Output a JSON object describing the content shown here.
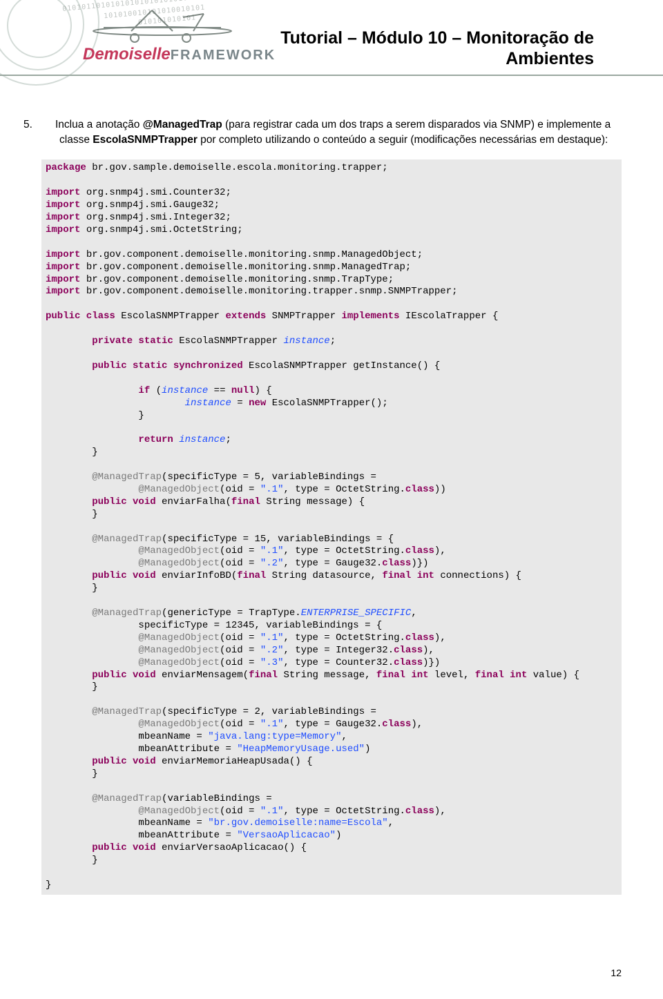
{
  "header": {
    "logo_brand": "Demoiselle",
    "logo_suffix": "FRAMEWORK",
    "title_line1": "Tutorial – Módulo 10 – Monitoração de",
    "title_line2": "Ambientes"
  },
  "body": {
    "item_number": "5.",
    "text_before_ann": "Inclua a anotação ",
    "annotation": "@ManagedTrap",
    "text_mid1": " (para registrar cada um dos traps a serem disparados via SNMP) e implemente a classe ",
    "classname": "EscolaSNMPTrapper",
    "text_after": " por completo utilizando o conteúdo a seguir (modificações necessárias em destaque):"
  },
  "code": {
    "lines": [
      [
        [
          "kw",
          "package"
        ],
        [
          "",
          " br.gov.sample.demoiselle.escola.monitoring.trapper;"
        ]
      ],
      [
        [
          "",
          ""
        ]
      ],
      [
        [
          "kw",
          "import"
        ],
        [
          "",
          " org.snmp4j.smi.Counter32;"
        ]
      ],
      [
        [
          "kw",
          "import"
        ],
        [
          "",
          " org.snmp4j.smi.Gauge32;"
        ]
      ],
      [
        [
          "kw",
          "import"
        ],
        [
          "",
          " org.snmp4j.smi.Integer32;"
        ]
      ],
      [
        [
          "kw",
          "import"
        ],
        [
          "",
          " org.snmp4j.smi.OctetString;"
        ]
      ],
      [
        [
          "",
          ""
        ]
      ],
      [
        [
          "kw",
          "import"
        ],
        [
          "",
          " br.gov.component.demoiselle.monitoring.snmp.ManagedObject;"
        ]
      ],
      [
        [
          "kw",
          "import"
        ],
        [
          "",
          " br.gov.component.demoiselle.monitoring.snmp.ManagedTrap;"
        ]
      ],
      [
        [
          "kw",
          "import"
        ],
        [
          "",
          " br.gov.component.demoiselle.monitoring.snmp.TrapType;"
        ]
      ],
      [
        [
          "kw",
          "import"
        ],
        [
          "",
          " br.gov.component.demoiselle.monitoring.trapper.snmp.SNMPTrapper;"
        ]
      ],
      [
        [
          "",
          ""
        ]
      ],
      [
        [
          "kw",
          "public class"
        ],
        [
          "",
          " EscolaSNMPTrapper "
        ],
        [
          "kw",
          "extends"
        ],
        [
          "",
          " SNMPTrapper "
        ],
        [
          "kw",
          "implements"
        ],
        [
          "",
          " IEscolaTrapper {"
        ]
      ],
      [
        [
          "",
          ""
        ]
      ],
      [
        [
          "",
          "        "
        ],
        [
          "kw",
          "private static"
        ],
        [
          "",
          " EscolaSNMPTrapper "
        ],
        [
          "it",
          "instance"
        ],
        [
          "",
          ";"
        ]
      ],
      [
        [
          "",
          ""
        ]
      ],
      [
        [
          "",
          "        "
        ],
        [
          "kw",
          "public static synchronized"
        ],
        [
          "",
          " EscolaSNMPTrapper getInstance() {"
        ]
      ],
      [
        [
          "",
          ""
        ]
      ],
      [
        [
          "",
          "                "
        ],
        [
          "kw",
          "if"
        ],
        [
          "",
          " ("
        ],
        [
          "it",
          "instance"
        ],
        [
          "",
          " == "
        ],
        [
          "kw",
          "null"
        ],
        [
          "",
          ") {"
        ]
      ],
      [
        [
          "",
          "                        "
        ],
        [
          "it",
          "instance"
        ],
        [
          "",
          " = "
        ],
        [
          "kw",
          "new"
        ],
        [
          "",
          " EscolaSNMPTrapper();"
        ]
      ],
      [
        [
          "",
          "                }"
        ]
      ],
      [
        [
          "",
          ""
        ]
      ],
      [
        [
          "",
          "                "
        ],
        [
          "kw",
          "return"
        ],
        [
          "",
          " "
        ],
        [
          "it",
          "instance"
        ],
        [
          "",
          ";"
        ]
      ],
      [
        [
          "",
          "        }"
        ]
      ],
      [
        [
          "",
          ""
        ]
      ],
      [
        [
          "",
          "        "
        ],
        [
          "ann",
          "@ManagedTrap"
        ],
        [
          "",
          "(specificType = 5, variableBindings ="
        ]
      ],
      [
        [
          "",
          "                "
        ],
        [
          "ann",
          "@ManagedObject"
        ],
        [
          "",
          "(oid = "
        ],
        [
          "str",
          "\".1\""
        ],
        [
          "",
          ", type = OctetString."
        ],
        [
          "kw",
          "class"
        ],
        [
          "",
          "))"
        ]
      ],
      [
        [
          "",
          "        "
        ],
        [
          "kw",
          "public void"
        ],
        [
          "",
          " enviarFalha("
        ],
        [
          "kw",
          "final"
        ],
        [
          "",
          " String message) {"
        ]
      ],
      [
        [
          "",
          "        }"
        ]
      ],
      [
        [
          "",
          ""
        ]
      ],
      [
        [
          "",
          "        "
        ],
        [
          "ann",
          "@ManagedTrap"
        ],
        [
          "",
          "(specificType = 15, variableBindings = {"
        ]
      ],
      [
        [
          "",
          "                "
        ],
        [
          "ann",
          "@ManagedObject"
        ],
        [
          "",
          "(oid = "
        ],
        [
          "str",
          "\".1\""
        ],
        [
          "",
          ", type = OctetString."
        ],
        [
          "kw",
          "class"
        ],
        [
          "",
          "),"
        ]
      ],
      [
        [
          "",
          "                "
        ],
        [
          "ann",
          "@ManagedObject"
        ],
        [
          "",
          "(oid = "
        ],
        [
          "str",
          "\".2\""
        ],
        [
          "",
          ", type = Gauge32."
        ],
        [
          "kw",
          "class"
        ],
        [
          "",
          ")})"
        ]
      ],
      [
        [
          "",
          "        "
        ],
        [
          "kw",
          "public void"
        ],
        [
          "",
          " enviarInfoBD("
        ],
        [
          "kw",
          "final"
        ],
        [
          "",
          " String datasource, "
        ],
        [
          "kw",
          "final int"
        ],
        [
          "",
          " connections) {"
        ]
      ],
      [
        [
          "",
          "        }"
        ]
      ],
      [
        [
          "",
          ""
        ]
      ],
      [
        [
          "",
          "        "
        ],
        [
          "ann",
          "@ManagedTrap"
        ],
        [
          "",
          "(genericType = TrapType."
        ],
        [
          "it",
          "ENTERPRISE_SPECIFIC"
        ],
        [
          "",
          ","
        ]
      ],
      [
        [
          "",
          "                specificType = 12345, variableBindings = {"
        ]
      ],
      [
        [
          "",
          "                "
        ],
        [
          "ann",
          "@ManagedObject"
        ],
        [
          "",
          "(oid = "
        ],
        [
          "str",
          "\".1\""
        ],
        [
          "",
          ", type = OctetString."
        ],
        [
          "kw",
          "class"
        ],
        [
          "",
          "),"
        ]
      ],
      [
        [
          "",
          "                "
        ],
        [
          "ann",
          "@ManagedObject"
        ],
        [
          "",
          "(oid = "
        ],
        [
          "str",
          "\".2\""
        ],
        [
          "",
          ", type = Integer32."
        ],
        [
          "kw",
          "class"
        ],
        [
          "",
          "),"
        ]
      ],
      [
        [
          "",
          "                "
        ],
        [
          "ann",
          "@ManagedObject"
        ],
        [
          "",
          "(oid = "
        ],
        [
          "str",
          "\".3\""
        ],
        [
          "",
          ", type = Counter32."
        ],
        [
          "kw",
          "class"
        ],
        [
          "",
          ")})"
        ]
      ],
      [
        [
          "",
          "        "
        ],
        [
          "kw",
          "public void"
        ],
        [
          "",
          " enviarMensagem("
        ],
        [
          "kw",
          "final"
        ],
        [
          "",
          " String message, "
        ],
        [
          "kw",
          "final int"
        ],
        [
          "",
          " level, "
        ],
        [
          "kw",
          "final int"
        ],
        [
          "",
          " value) {"
        ]
      ],
      [
        [
          "",
          "        }"
        ]
      ],
      [
        [
          "",
          ""
        ]
      ],
      [
        [
          "",
          "        "
        ],
        [
          "ann",
          "@ManagedTrap"
        ],
        [
          "",
          "(specificType = 2, variableBindings ="
        ]
      ],
      [
        [
          "",
          "                "
        ],
        [
          "ann",
          "@ManagedObject"
        ],
        [
          "",
          "(oid = "
        ],
        [
          "str",
          "\".1\""
        ],
        [
          "",
          ", type = Gauge32."
        ],
        [
          "kw",
          "class"
        ],
        [
          "",
          "),"
        ]
      ],
      [
        [
          "",
          "                mbeanName = "
        ],
        [
          "str",
          "\"java.lang:type=Memory\""
        ],
        [
          "",
          ","
        ]
      ],
      [
        [
          "",
          "                mbeanAttribute = "
        ],
        [
          "str",
          "\"HeapMemoryUsage.used\""
        ],
        [
          "",
          ")"
        ]
      ],
      [
        [
          "",
          "        "
        ],
        [
          "kw",
          "public void"
        ],
        [
          "",
          " enviarMemoriaHeapUsada() {"
        ]
      ],
      [
        [
          "",
          "        }"
        ]
      ],
      [
        [
          "",
          ""
        ]
      ],
      [
        [
          "",
          "        "
        ],
        [
          "ann",
          "@ManagedTrap"
        ],
        [
          "",
          "(variableBindings ="
        ]
      ],
      [
        [
          "",
          "                "
        ],
        [
          "ann",
          "@ManagedObject"
        ],
        [
          "",
          "(oid = "
        ],
        [
          "str",
          "\".1\""
        ],
        [
          "",
          ", type = OctetString."
        ],
        [
          "kw",
          "class"
        ],
        [
          "",
          "),"
        ]
      ],
      [
        [
          "",
          "                mbeanName = "
        ],
        [
          "str",
          "\"br.gov.demoiselle:name=Escola\""
        ],
        [
          "",
          ","
        ]
      ],
      [
        [
          "",
          "                mbeanAttribute = "
        ],
        [
          "str",
          "\"VersaoAplicacao\""
        ],
        [
          "",
          ")"
        ]
      ],
      [
        [
          "",
          "        "
        ],
        [
          "kw",
          "public void"
        ],
        [
          "",
          " enviarVersaoAplicacao() {"
        ]
      ],
      [
        [
          "",
          "        }"
        ]
      ],
      [
        [
          "",
          ""
        ]
      ],
      [
        [
          "",
          "}"
        ]
      ]
    ]
  },
  "footer": {
    "page_number": "12"
  },
  "style": {
    "code_bg": "#e8e8e8",
    "code_font": "Courier New",
    "code_fontsize": 14,
    "body_font": "Arial",
    "body_fontsize": 15.5,
    "keyword_color": "#8b005a",
    "annotation_color": "#7a7a7a",
    "string_color": "#1e4dff",
    "italic_color": "#1e4dff",
    "rule_color": "#9aa8a0",
    "logo_brand_color": "#c4375a",
    "logo_suffix_color": "#7a868a",
    "header_title_fontsize": 25
  }
}
